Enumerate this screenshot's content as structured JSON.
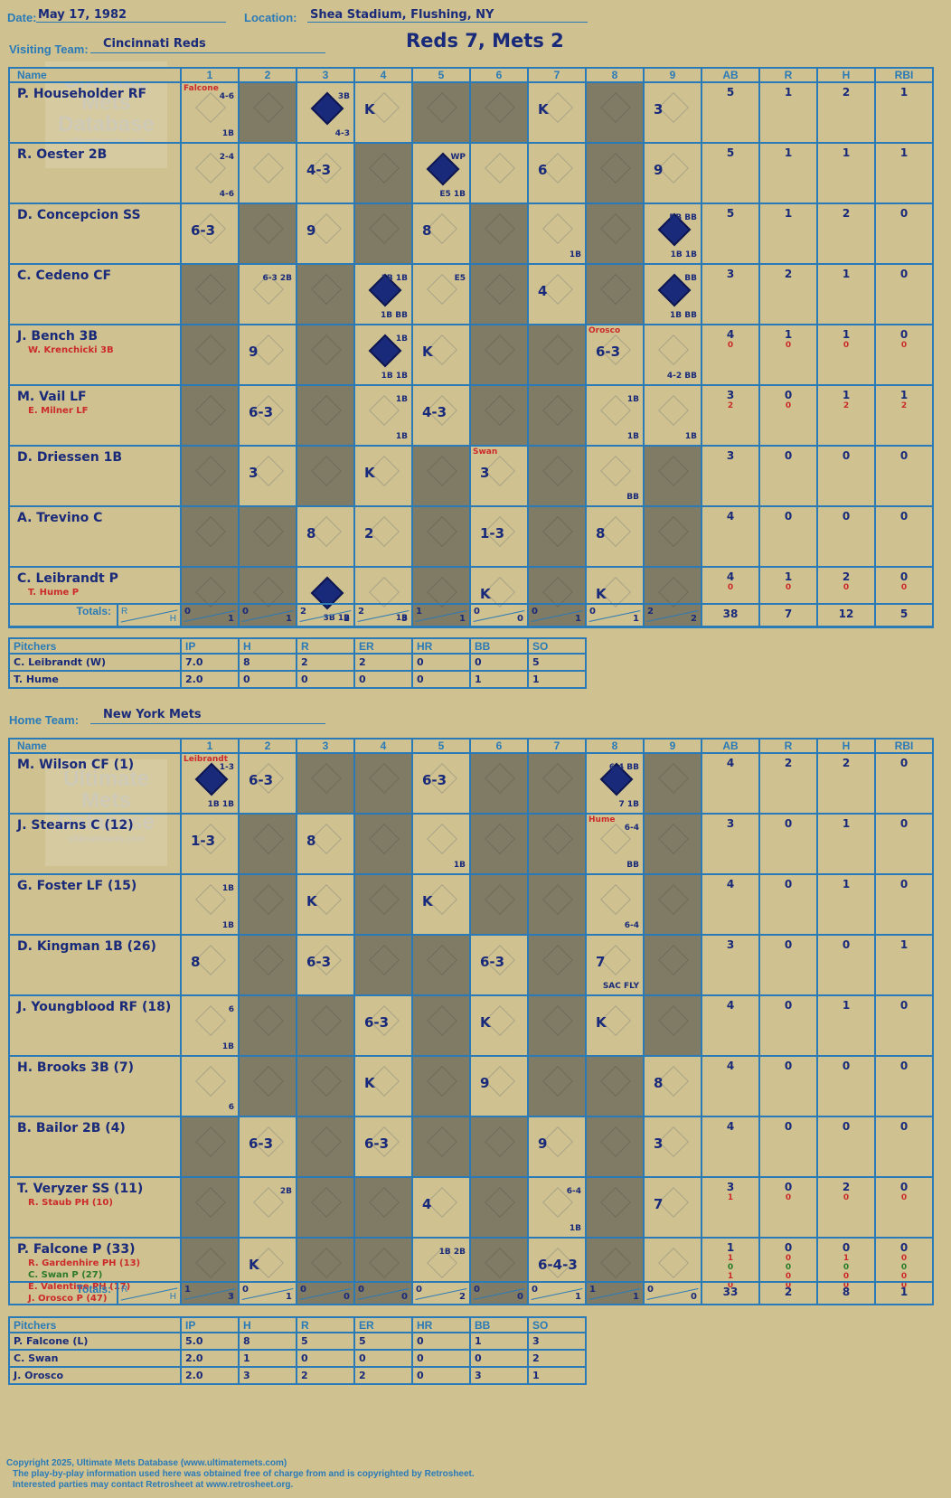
{
  "header": {
    "date_label": "Date:",
    "date": "May 17, 1982",
    "location_label": "Location:",
    "location": "Shea Stadium, Flushing, NY",
    "score_title": "Reds 7, Mets 2"
  },
  "visiting": {
    "label": "Visiting Team:",
    "team": "Cincinnati Reds",
    "columns": [
      "Name",
      "1",
      "2",
      "3",
      "4",
      "5",
      "6",
      "7",
      "8",
      "9",
      "AB",
      "R",
      "H",
      "RBI"
    ],
    "players": [
      {
        "name": "P. Householder RF",
        "subs": [],
        "stats": [
          [
            "5",
            "1",
            "2",
            "1"
          ]
        ]
      },
      {
        "name": "R. Oester 2B",
        "subs": [],
        "stats": [
          [
            "5",
            "1",
            "1",
            "1"
          ]
        ]
      },
      {
        "name": "D. Concepcion SS",
        "subs": [],
        "stats": [
          [
            "5",
            "1",
            "2",
            "0"
          ]
        ]
      },
      {
        "name": "C. Cedeno CF",
        "subs": [],
        "stats": [
          [
            "3",
            "2",
            "1",
            "0"
          ]
        ]
      },
      {
        "name": "J. Bench 3B",
        "subs": [
          "W. Krenchicki 3B"
        ],
        "stats": [
          [
            "4",
            "1",
            "1",
            "0"
          ],
          [
            "0",
            "0",
            "0",
            "0"
          ]
        ]
      },
      {
        "name": "M. Vail LF",
        "subs": [
          "E. Milner LF"
        ],
        "stats": [
          [
            "3",
            "0",
            "1",
            "1"
          ],
          [
            "2",
            "0",
            "2",
            "2"
          ]
        ]
      },
      {
        "name": "D. Driessen 1B",
        "subs": [],
        "stats": [
          [
            "3",
            "0",
            "0",
            "0"
          ]
        ]
      },
      {
        "name": "A. Trevino C",
        "subs": [],
        "stats": [
          [
            "4",
            "0",
            "0",
            "0"
          ]
        ]
      },
      {
        "name": "C. Leibrandt P",
        "subs": [
          "T. Hume P"
        ],
        "stats": [
          [
            "4",
            "1",
            "2",
            "0"
          ],
          [
            "0",
            "0",
            "0",
            "0"
          ]
        ]
      }
    ],
    "totals_label": "Totals:",
    "totals_rh_r": "R",
    "totals_rh_h": "H",
    "innings_totals": [
      [
        "0",
        "1"
      ],
      [
        "0",
        "1"
      ],
      [
        "2",
        "2"
      ],
      [
        "2",
        "3"
      ],
      [
        "1",
        "1"
      ],
      [
        "0",
        "0"
      ],
      [
        "0",
        "1"
      ],
      [
        "0",
        "1"
      ],
      [
        "2",
        "2"
      ]
    ],
    "totals": [
      "38",
      "7",
      "12",
      "5"
    ],
    "pitchers_header": [
      "Pitchers",
      "IP",
      "H",
      "R",
      "ER",
      "HR",
      "BB",
      "SO"
    ],
    "pitchers": [
      [
        "C. Leibrandt (W)",
        "7.0",
        "8",
        "2",
        "2",
        "0",
        "0",
        "5"
      ],
      [
        "T. Hume",
        "2.0",
        "0",
        "0",
        "0",
        "0",
        "1",
        "1"
      ]
    ]
  },
  "home": {
    "label": "Home Team:",
    "team": "New York Mets",
    "players": [
      {
        "name": "M. Wilson CF (1)",
        "subs": [],
        "stats": [
          [
            "4",
            "2",
            "2",
            "0"
          ]
        ]
      },
      {
        "name": "J. Stearns C (12)",
        "subs": [],
        "stats": [
          [
            "3",
            "0",
            "1",
            "0"
          ]
        ]
      },
      {
        "name": "G. Foster LF (15)",
        "subs": [],
        "stats": [
          [
            "4",
            "0",
            "1",
            "0"
          ]
        ]
      },
      {
        "name": "D. Kingman 1B (26)",
        "subs": [],
        "stats": [
          [
            "3",
            "0",
            "0",
            "1"
          ]
        ]
      },
      {
        "name": "J. Youngblood RF (18)",
        "subs": [],
        "stats": [
          [
            "4",
            "0",
            "1",
            "0"
          ]
        ]
      },
      {
        "name": "H. Brooks 3B (7)",
        "subs": [],
        "stats": [
          [
            "4",
            "0",
            "0",
            "0"
          ]
        ]
      },
      {
        "name": "B. Bailor 2B (4)",
        "subs": [],
        "stats": [
          [
            "4",
            "0",
            "0",
            "0"
          ]
        ]
      },
      {
        "name": "T. Veryzer SS (11)",
        "subs": [
          "R. Staub PH (10)"
        ],
        "stats": [
          [
            "3",
            "0",
            "2",
            "0"
          ],
          [
            "1",
            "0",
            "0",
            "0"
          ]
        ]
      },
      {
        "name": "P. Falcone P (33)",
        "subs": [
          "R. Gardenhire PH (13)",
          "C. Swan P (27)",
          "E. Valentine PH (17)",
          "J. Orosco P (47)"
        ],
        "stats": [
          [
            "1",
            "0",
            "0",
            "0"
          ],
          [
            "1",
            "0",
            "1",
            "0"
          ],
          [
            "0",
            "0",
            "0",
            "0"
          ],
          [
            "1",
            "0",
            "0",
            "0"
          ],
          [
            "0",
            "0",
            "0",
            "0"
          ]
        ]
      }
    ],
    "innings_totals": [
      [
        "1",
        "3"
      ],
      [
        "0",
        "1"
      ],
      [
        "0",
        "0"
      ],
      [
        "0",
        "0"
      ],
      [
        "0",
        "2"
      ],
      [
        "0",
        "0"
      ],
      [
        "0",
        "1"
      ],
      [
        "1",
        "1"
      ],
      [
        "0",
        "0"
      ]
    ],
    "totals": [
      "33",
      "2",
      "8",
      "1"
    ],
    "pitchers": [
      [
        "P. Falcone (L)",
        "5.0",
        "8",
        "5",
        "5",
        "0",
        "1",
        "3"
      ],
      [
        "C. Swan",
        "2.0",
        "1",
        "0",
        "0",
        "0",
        "0",
        "2"
      ],
      [
        "J. Orosco",
        "2.0",
        "3",
        "2",
        "2",
        "0",
        "3",
        "1"
      ]
    ]
  },
  "plays_visiting": [
    [
      {
        "i": 1,
        "t": "",
        "n": "Falcone",
        "n2": "4-6",
        "n3": "1B"
      },
      {
        "i": 3,
        "t": "",
        "run": true,
        "n2": "3B",
        "n3": "4-3"
      },
      {
        "i": 4,
        "t": "K"
      },
      {
        "i": 7,
        "t": "K"
      },
      {
        "i": 9,
        "t": "3"
      }
    ],
    [
      {
        "i": 1,
        "t": "",
        "n2": "2-4",
        "n3": "4-6"
      },
      {
        "i": 3,
        "t": "4-3"
      },
      {
        "i": 5,
        "t": "",
        "run": true,
        "n2": "WP",
        "n3": "E5 1B"
      },
      {
        "i": 7,
        "t": "6"
      },
      {
        "i": 9,
        "t": "9"
      }
    ],
    [
      {
        "i": 1,
        "t": "6-3"
      },
      {
        "i": 3,
        "t": "9"
      },
      {
        "i": 5,
        "t": "8"
      },
      {
        "i": 7,
        "t": "",
        "n3": "1B"
      },
      {
        "i": 9,
        "t": "",
        "run": true,
        "n2": "BB BB",
        "n3": "1B 1B"
      }
    ],
    [
      {
        "i": 2,
        "t": "",
        "n2": "6-3 2B"
      },
      {
        "i": 4,
        "t": "",
        "run": true,
        "n2": "1B 1B",
        "n3": "1B BB"
      },
      {
        "i": 5,
        "t": "",
        "n2": "E5"
      },
      {
        "i": 7,
        "t": "4"
      },
      {
        "i": 9,
        "t": "",
        "run": true,
        "n2": "BB",
        "n3": "1B BB"
      }
    ],
    [
      {
        "i": 2,
        "t": "9"
      },
      {
        "i": 4,
        "t": "",
        "run": true,
        "n2": "1B",
        "n3": "1B 1B"
      },
      {
        "i": 5,
        "t": "K"
      },
      {
        "i": 8,
        "t": "6-3",
        "n": "Orosco"
      },
      {
        "i": 9,
        "t": "",
        "n3": "4-2 BB"
      }
    ],
    [
      {
        "i": 2,
        "t": "6-3"
      },
      {
        "i": 4,
        "t": "",
        "n2": "1B",
        "n3": "1B"
      },
      {
        "i": 5,
        "t": "4-3"
      },
      {
        "i": 8,
        "t": "",
        "n2": "1B",
        "n3": "1B"
      },
      {
        "i": 9,
        "t": "",
        "n3": "1B"
      }
    ],
    [
      {
        "i": 2,
        "t": "3"
      },
      {
        "i": 4,
        "t": "K"
      },
      {
        "i": 6,
        "t": "3",
        "n": "Swan"
      },
      {
        "i": 8,
        "t": "",
        "n3": "BB"
      }
    ],
    [
      {
        "i": 3,
        "t": "8"
      },
      {
        "i": 4,
        "t": "2"
      },
      {
        "i": 6,
        "t": "1-3"
      },
      {
        "i": 8,
        "t": "8"
      }
    ],
    [
      {
        "i": 3,
        "t": "",
        "run": true,
        "n3": "3B 1B"
      },
      {
        "i": 4,
        "t": "",
        "n3": "1B"
      },
      {
        "i": 6,
        "t": "K"
      },
      {
        "i": 8,
        "t": "K"
      }
    ]
  ],
  "plays_home": [
    [
      {
        "i": 1,
        "t": "",
        "run": true,
        "n": "Leibrandt",
        "n2": "1-3",
        "n3": "1B 1B"
      },
      {
        "i": 2,
        "t": "6-3"
      },
      {
        "i": 5,
        "t": "6-3"
      },
      {
        "i": 8,
        "t": "",
        "run": true,
        "n2": "6-4 BB",
        "n3": "7 1B"
      }
    ],
    [
      {
        "i": 1,
        "t": "1-3"
      },
      {
        "i": 3,
        "t": "8"
      },
      {
        "i": 5,
        "t": "",
        "n3": "1B"
      },
      {
        "i": 8,
        "t": "",
        "n": "Hume",
        "n2": "6-4",
        "n3": "BB"
      }
    ],
    [
      {
        "i": 1,
        "t": "",
        "n2": "1B",
        "n3": "1B"
      },
      {
        "i": 3,
        "t": "K"
      },
      {
        "i": 5,
        "t": "K"
      },
      {
        "i": 8,
        "t": "",
        "n3": "6-4"
      }
    ],
    [
      {
        "i": 1,
        "t": "8"
      },
      {
        "i": 3,
        "t": "6-3"
      },
      {
        "i": 6,
        "t": "6-3"
      },
      {
        "i": 8,
        "t": "7",
        "n3": "SAC FLY"
      }
    ],
    [
      {
        "i": 1,
        "t": "",
        "n2": "6",
        "n3": "1B"
      },
      {
        "i": 4,
        "t": "6-3"
      },
      {
        "i": 6,
        "t": "K"
      },
      {
        "i": 8,
        "t": "K"
      }
    ],
    [
      {
        "i": 1,
        "t": "",
        "n3": "6"
      },
      {
        "i": 4,
        "t": "K"
      },
      {
        "i": 6,
        "t": "9"
      },
      {
        "i": 9,
        "t": "8"
      }
    ],
    [
      {
        "i": 2,
        "t": "6-3"
      },
      {
        "i": 4,
        "t": "6-3"
      },
      {
        "i": 7,
        "t": "9"
      },
      {
        "i": 9,
        "t": "3"
      }
    ],
    [
      {
        "i": 2,
        "t": "",
        "n2": "2B"
      },
      {
        "i": 5,
        "t": "4"
      },
      {
        "i": 7,
        "t": "",
        "n2": "6-4",
        "n3": "1B"
      },
      {
        "i": 9,
        "t": "7"
      }
    ],
    [
      {
        "i": 2,
        "t": "K"
      },
      {
        "i": 5,
        "t": "",
        "n2": "1B 2B"
      },
      {
        "i": 7,
        "t": "6-4-3"
      }
    ]
  ],
  "dark_visiting": [
    [
      2,
      5,
      6,
      8
    ],
    [
      4,
      8
    ],
    [
      2,
      4,
      6,
      8
    ],
    [
      1,
      3,
      6,
      8
    ],
    [
      1,
      3,
      6,
      7
    ],
    [
      1,
      3,
      6,
      7
    ],
    [
      1,
      3,
      5,
      7,
      9
    ],
    [
      1,
      2,
      5,
      7,
      9
    ],
    [
      1,
      2,
      5,
      7,
      9
    ]
  ],
  "dark_home": [
    [
      3,
      4,
      6,
      7,
      9
    ],
    [
      2,
      4,
      6,
      7,
      9
    ],
    [
      2,
      4,
      6,
      7,
      9
    ],
    [
      2,
      4,
      5,
      7,
      9
    ],
    [
      2,
      3,
      5,
      7,
      9
    ],
    [
      2,
      3,
      5,
      7,
      8
    ],
    [
      1,
      3,
      5,
      6,
      8
    ],
    [
      1,
      3,
      4,
      6,
      8
    ],
    [
      1,
      3,
      4,
      6,
      8
    ]
  ],
  "watermark": {
    "line1": "Ultimate",
    "line2": "Mets",
    "line3": "Database",
    "site": "ultimatemets.com"
  },
  "footer": {
    "line1": "Copyright 2025, Ultimate Mets Database (www.ultimatemets.com)",
    "line2": "The play-by-play information used here was obtained free of charge from and is copyrighted by Retrosheet.",
    "line3": "Interested parties may contact Retrosheet at www.retrosheet.org."
  },
  "colors": {
    "background": "#cfc290",
    "grid": "#2a7ab8",
    "ink": "#1a2a7a",
    "dark_cell": "#7f7b65",
    "sub_red": "#cc2a2a"
  }
}
